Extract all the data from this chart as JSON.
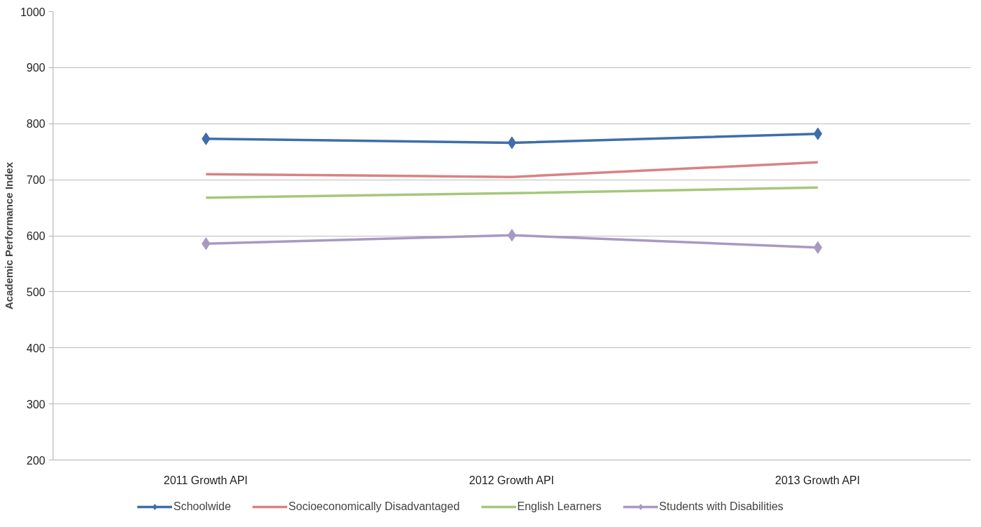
{
  "chart_data": {
    "type": "line",
    "ylabel": "Academic Performance Index",
    "categories": [
      "2011 Growth API",
      "2012 Growth API",
      "2013 Growth API"
    ],
    "ylim": [
      200,
      1000
    ],
    "yticks": [
      200,
      300,
      400,
      500,
      600,
      700,
      800,
      900,
      1000
    ],
    "grid": "y",
    "legend": "bottom",
    "line_style": "solid",
    "series": [
      {
        "name": "Schoolwide",
        "color": "#3d6eab",
        "marker": "diamond",
        "values": [
          773,
          766,
          782
        ]
      },
      {
        "name": "Socioeconomically Disadvantaged",
        "color": "#d98282",
        "marker": "none",
        "values": [
          710,
          705,
          731
        ]
      },
      {
        "name": "English Learners",
        "color": "#a6c77a",
        "marker": "none",
        "values": [
          668,
          676,
          686
        ]
      },
      {
        "name": "Students with Disabilities",
        "color": "#a899c2",
        "marker": "diamond",
        "values": [
          586,
          601,
          579
        ]
      }
    ]
  }
}
